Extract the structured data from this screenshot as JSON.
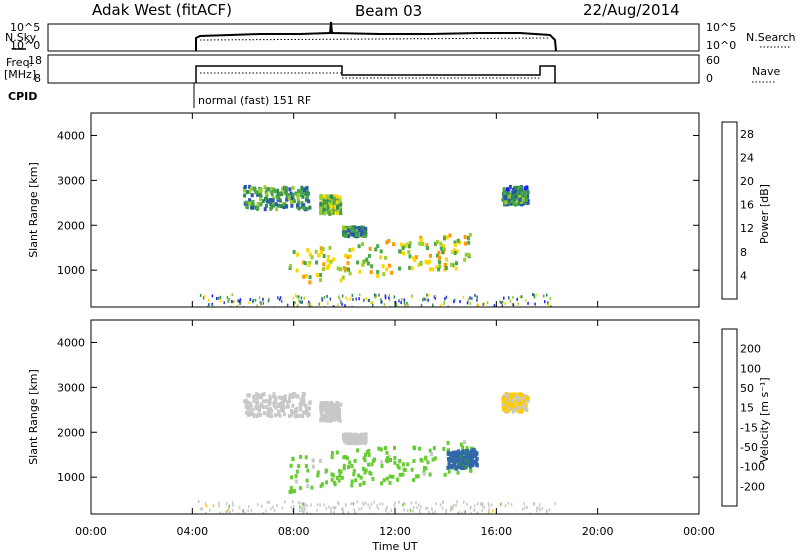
{
  "header": {
    "station": "Adak West (fitACF)",
    "beam": "Beam 03",
    "date": "22/Aug/2014"
  },
  "panels": {
    "nsky": {
      "label": "N.Sky",
      "right_label": "N.Search",
      "ticks_left": [
        "10^5",
        "10^0"
      ],
      "ticks_right": [
        "10^5",
        "10^0"
      ]
    },
    "freq": {
      "label_line1": "Freq.",
      "label_line2": "[MHz]",
      "right_label": "Nave",
      "ticks_left": [
        "18",
        "8"
      ],
      "ticks_right": [
        "60",
        "0"
      ]
    },
    "cpid": {
      "label": "CPID",
      "mode_text": "normal (fast) 151 RF"
    }
  },
  "colors": {
    "power_scale": [
      "#1a1aff",
      "#2a55b0",
      "#2e8b57",
      "#48a848",
      "#9acd32",
      "#ffd700",
      "#ff9900",
      "#ff5500",
      "#ff0000"
    ],
    "velocity_scale": [
      "#2222cc",
      "#3366aa",
      "#2e8b57",
      "#66cc33",
      "#c8c8c8",
      "#ffcc00",
      "#ff9900",
      "#ff6600",
      "#ff0000"
    ]
  },
  "chart_data": [
    {
      "type": "heatmap",
      "title": "",
      "xlabel": "Time UT",
      "ylabel": "Slant Range [km]",
      "x_ticks": [
        "00:00",
        "04:00",
        "08:00",
        "12:00",
        "16:00",
        "20:00",
        "00:00"
      ],
      "y_ticks": [
        "1000",
        "2000",
        "3000",
        "4000"
      ],
      "ylim": [
        180,
        4500
      ],
      "colorbar": {
        "label": "Power [dB]",
        "ticks": [
          "4",
          "8",
          "12",
          "16",
          "20",
          "24",
          "28"
        ],
        "range": [
          0,
          30
        ]
      },
      "data_extent_ut": [
        "04:10",
        "18:30"
      ],
      "blobs": [
        {
          "t0": 6.0,
          "t1": 8.6,
          "r0": 2400,
          "r1": 2900,
          "value": 10
        },
        {
          "t0": 9.0,
          "t1": 9.8,
          "r0": 2300,
          "r1": 2700,
          "value": 14
        },
        {
          "t0": 9.9,
          "t1": 10.8,
          "r0": 1800,
          "r1": 2000,
          "value": 10
        },
        {
          "t0": 7.8,
          "t1": 15.0,
          "r0": 700,
          "r1": 1500,
          "value": 16
        },
        {
          "t0": 16.2,
          "t1": 17.2,
          "r0": 2500,
          "r1": 2900,
          "value": 8
        }
      ]
    },
    {
      "type": "heatmap",
      "title": "",
      "xlabel": "Time UT",
      "ylabel": "Slant Range [km]",
      "x_ticks": [
        "00:00",
        "04:00",
        "08:00",
        "12:00",
        "16:00",
        "20:00",
        "00:00"
      ],
      "y_ticks": [
        "1000",
        "2000",
        "3000",
        "4000"
      ],
      "ylim": [
        180,
        4500
      ],
      "colorbar": {
        "label": "Velocity [m s⁻¹]",
        "ticks": [
          "200",
          "100",
          "50",
          "15",
          "-15",
          "-50",
          "-100",
          "-200"
        ],
        "range": [
          -250,
          250
        ]
      },
      "data_extent_ut": [
        "04:10",
        "18:30"
      ],
      "blobs": [
        {
          "t0": 6.0,
          "t1": 8.6,
          "r0": 2400,
          "r1": 2900,
          "value": 0
        },
        {
          "t0": 9.0,
          "t1": 9.8,
          "r0": 2300,
          "r1": 2700,
          "value": 0
        },
        {
          "t0": 9.9,
          "t1": 10.8,
          "r0": 1800,
          "r1": 2000,
          "value": 0
        },
        {
          "t0": 7.8,
          "t1": 15.0,
          "r0": 700,
          "r1": 1500,
          "value": -40
        },
        {
          "t0": 14.0,
          "t1": 15.2,
          "r0": 1200,
          "r1": 1600,
          "value": -150
        },
        {
          "t0": 16.2,
          "t1": 17.2,
          "r0": 2500,
          "r1": 2900,
          "value": 30
        }
      ]
    }
  ]
}
